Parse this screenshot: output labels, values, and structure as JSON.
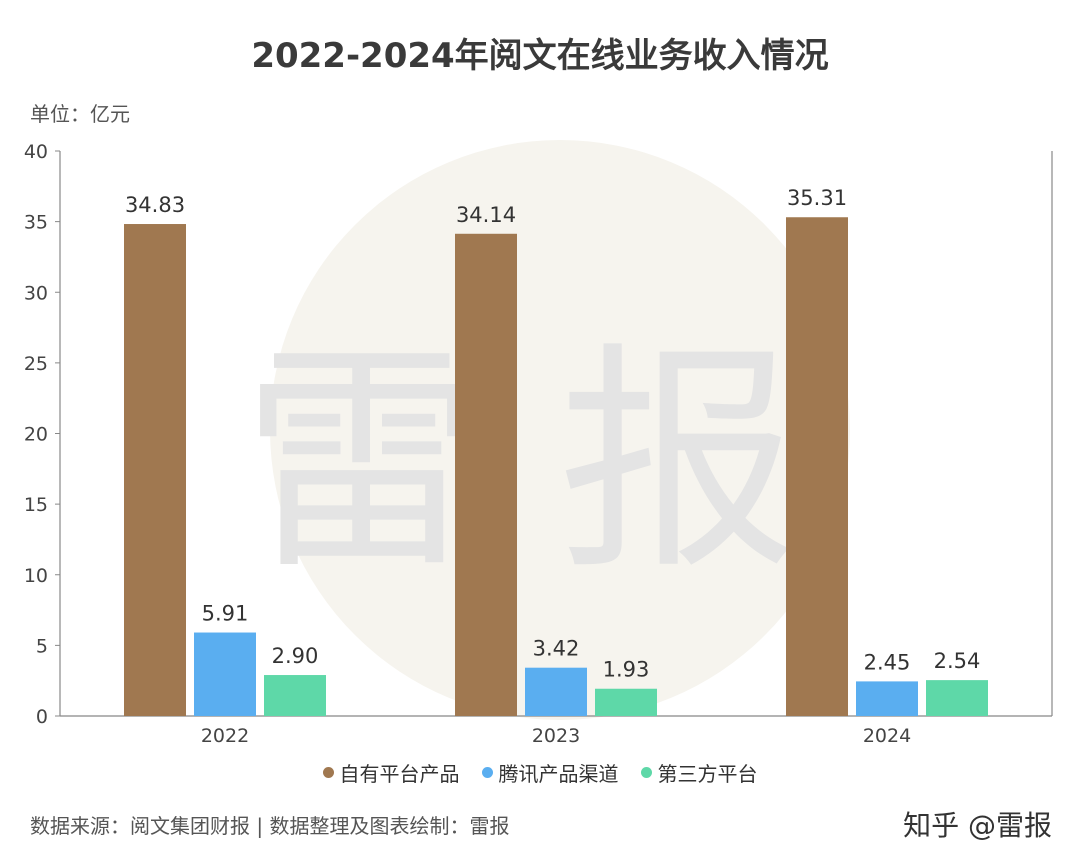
{
  "title": "2022-2024年阅文在线业务收入情况",
  "unit_label": "单位：亿元",
  "watermark_text": "雷 报",
  "footer": {
    "source": "数据来源：阅文集团财报 | 数据整理及图表绘制：雷报",
    "brand": "知乎 @雷报"
  },
  "chart_data": {
    "type": "bar",
    "categories": [
      "2022",
      "2023",
      "2024"
    ],
    "series": [
      {
        "name": "自有平台产品",
        "color": "#a07850",
        "values": [
          34.83,
          34.14,
          35.31
        ],
        "labels": [
          "34.83",
          "34.14",
          "35.31"
        ]
      },
      {
        "name": "腾讯产品渠道",
        "color": "#5aaef0",
        "values": [
          5.91,
          3.42,
          2.45
        ],
        "labels": [
          "5.91",
          "3.42",
          "2.45"
        ]
      },
      {
        "name": "第三方平台",
        "color": "#5ed8a8",
        "values": [
          2.9,
          1.93,
          2.54
        ],
        "labels": [
          "2.90",
          "1.93",
          "2.54"
        ]
      }
    ],
    "ylim": [
      0,
      40
    ],
    "yticks": [
      0,
      5,
      10,
      15,
      20,
      25,
      30,
      35,
      40
    ],
    "grid": false,
    "legend_position": "bottom"
  }
}
